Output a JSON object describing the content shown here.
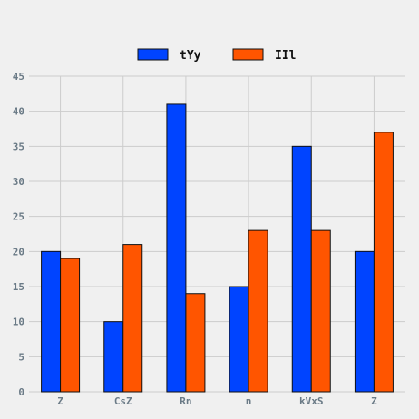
{
  "chart_data": {
    "type": "bar",
    "categories": [
      "Z",
      "CsZ",
      "Rn",
      "n",
      "kVxS",
      "Z"
    ],
    "series": [
      {
        "name": "tYy",
        "values": [
          20,
          10,
          41,
          15,
          35,
          20
        ],
        "color": "#0044ff"
      },
      {
        "name": "IIl",
        "values": [
          19,
          21,
          14,
          23,
          23,
          37
        ],
        "color": "#ff5500"
      }
    ],
    "ylim": [
      0,
      45
    ],
    "yticks": [
      0,
      5,
      10,
      15,
      20,
      25,
      30,
      35,
      40,
      45
    ],
    "grid": true,
    "legend_position": "top-center"
  }
}
